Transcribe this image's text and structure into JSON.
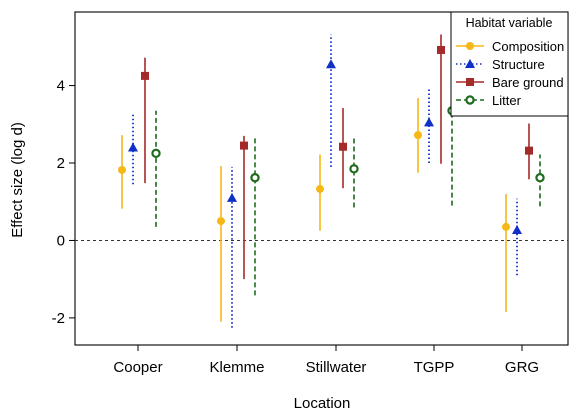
{
  "chart_data": {
    "type": "scatter",
    "subtype": "point-with-interval",
    "xlabel": "Location",
    "ylabel": "Effect size (log d)",
    "categories": [
      "Cooper",
      "Klemme",
      "Stillwater",
      "TGPP",
      "GRG"
    ],
    "ylim": [
      -2.7,
      5.9
    ],
    "yticks": [
      -2,
      0,
      2,
      4
    ],
    "yticklabels": [
      "-2",
      "0",
      "2",
      "4"
    ],
    "reference_line": {
      "y": 0,
      "style": "dashed"
    },
    "grid": false,
    "legend": {
      "title": "Habitat variable",
      "position": "top-right",
      "entries": [
        "Composition",
        "Structure",
        "Bare ground",
        "Litter"
      ]
    },
    "series": [
      {
        "name": "Composition",
        "color": "#F5B815",
        "marker": "circle",
        "line": "solid",
        "values": [
          1.82,
          0.5,
          1.33,
          2.72,
          0.35
        ],
        "lower": [
          0.82,
          -2.1,
          0.25,
          1.75,
          -1.85
        ],
        "upper": [
          2.72,
          1.92,
          2.22,
          3.68,
          1.2
        ]
      },
      {
        "name": "Structure",
        "color": "#1030C8",
        "marker": "triangle",
        "line": "dotted",
        "values": [
          2.4,
          1.1,
          4.55,
          3.05,
          0.27
        ],
        "lower": [
          1.45,
          -2.25,
          1.9,
          2.0,
          -0.9
        ],
        "upper": [
          3.25,
          1.9,
          5.32,
          3.9,
          1.08
        ]
      },
      {
        "name": "Bare ground",
        "color": "#A52A2A",
        "marker": "square",
        "line": "solid",
        "values": [
          4.25,
          2.45,
          2.42,
          4.92,
          2.32
        ],
        "lower": [
          1.48,
          -1.0,
          1.35,
          1.98,
          1.58
        ],
        "upper": [
          4.72,
          2.7,
          3.42,
          5.32,
          3.02
        ]
      },
      {
        "name": "Litter",
        "color": "#1E6B1E",
        "marker": "open-circle",
        "line": "dashed",
        "values": [
          2.25,
          1.62,
          1.85,
          3.35,
          1.62
        ],
        "lower": [
          0.35,
          -1.42,
          0.85,
          0.9,
          0.88
        ],
        "upper": [
          3.35,
          2.65,
          2.7,
          4.2,
          2.22
        ]
      }
    ]
  }
}
